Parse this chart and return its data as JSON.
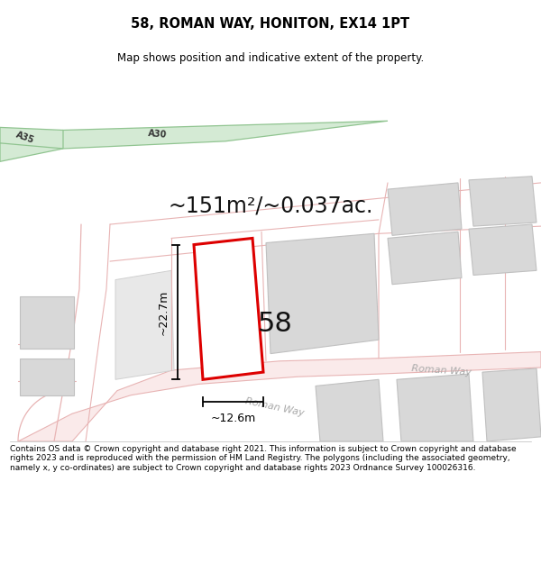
{
  "title": "58, ROMAN WAY, HONITON, EX14 1PT",
  "subtitle": "Map shows position and indicative extent of the property.",
  "area_text": "~151m²/~0.037ac.",
  "number_label": "58",
  "dim_width": "~12.6m",
  "dim_height": "~22.7m",
  "road_label": "Roman Way",
  "road_label_diagonal": "Roman Way",
  "a35_label": "A35",
  "a30_label": "A30",
  "footer": "Contains OS data © Crown copyright and database right 2021. This information is subject to Crown copyright and database rights 2023 and is reproduced with the permission of HM Land Registry. The polygons (including the associated geometry, namely x, y co-ordinates) are subject to Crown copyright and database rights 2023 Ordnance Survey 100026316.",
  "bg_color": "#ffffff",
  "road_fill": "#faeaea",
  "road_edge": "#e8b4b4",
  "building_fill": "#d8d8d8",
  "building_edge": "#c0c0c0",
  "plot_edge": "#dd0000",
  "green_fill": "#d4ead4",
  "green_edge": "#90c490",
  "title_fontsize": 10.5,
  "subtitle_fontsize": 8.5,
  "area_fontsize": 17,
  "number_fontsize": 22,
  "dim_fontsize": 9,
  "footer_fontsize": 6.5,
  "road_text_color": "#aaaaaa",
  "road_text_size": 8
}
